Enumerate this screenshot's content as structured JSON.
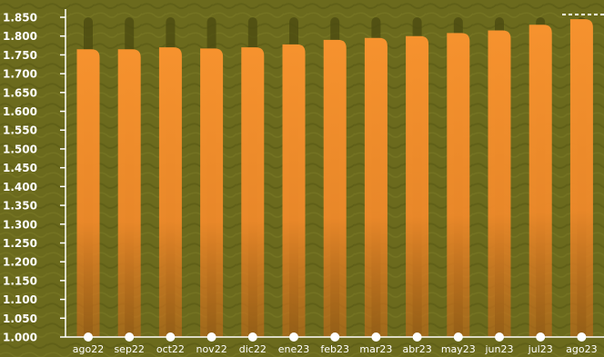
{
  "chart_data": {
    "type": "bar",
    "categories": [
      "ago22",
      "sep22",
      "oct22",
      "nov22",
      "dic22",
      "ene23",
      "feb23",
      "mar23",
      "abr23",
      "may23",
      "jun23",
      "jul23",
      "ago23"
    ],
    "values": [
      1765,
      1765,
      1770,
      1767,
      1770,
      1778,
      1790,
      1795,
      1800,
      1808,
      1815,
      1830,
      1845
    ],
    "ytick_labels": [
      "1.000",
      "1.050",
      "1.100",
      "1.150",
      "1.200",
      "1.250",
      "1.300",
      "1.350",
      "1.400",
      "1.450",
      "1.500",
      "1.550",
      "1.600",
      "1.650",
      "1.700",
      "1.750",
      "1.800",
      "1.850"
    ],
    "ylim": [
      1000,
      1850
    ],
    "title": "",
    "xlabel": "",
    "ylabel": "",
    "grid": false,
    "legend": "none",
    "reference_line": {
      "value": 1850,
      "style": "dashed"
    },
    "colors": {
      "background": "#6b6a1d",
      "bar_top": "#f6922e",
      "bar_bottom": "#c96a1a",
      "bar_shadow": "#4a4a10",
      "axis": "#ffffff",
      "marker": "#ffffff"
    }
  }
}
